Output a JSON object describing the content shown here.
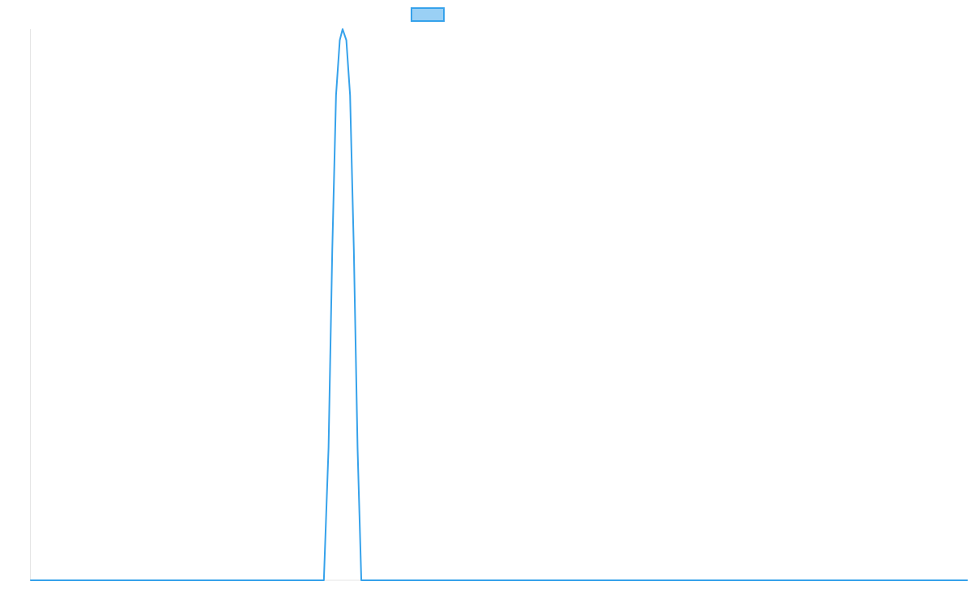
{
  "chart_data": {
    "type": "line",
    "title": "",
    "xlabel": "",
    "ylabel": "",
    "grid": false,
    "legend_position": "top",
    "xlim": [
      0,
      1000
    ],
    "ylim": [
      0,
      100
    ],
    "series": [
      {
        "name": "",
        "color": "#36a2eb",
        "fill_color": "#9ad0f5",
        "x": [
          0,
          313,
          318,
          322,
          326,
          330,
          333,
          337,
          341,
          345,
          349,
          353,
          1000
        ],
        "y": [
          0,
          0,
          24,
          60,
          88,
          98,
          100,
          98,
          88,
          60,
          24,
          0,
          0
        ]
      }
    ]
  }
}
